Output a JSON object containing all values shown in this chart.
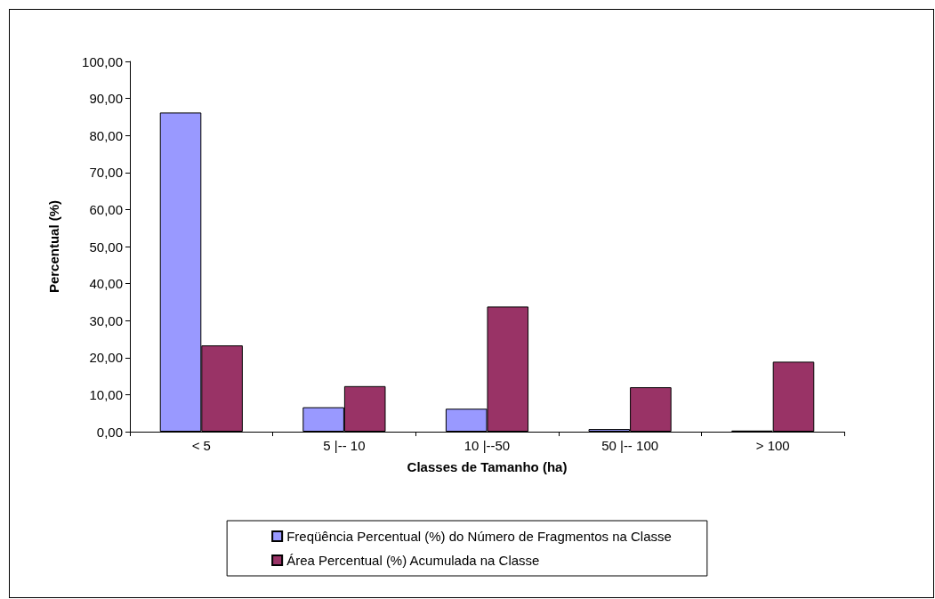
{
  "chart_data": {
    "type": "bar",
    "xlabel": "Classes de Tamanho (ha)",
    "ylabel": "Percentual (%)",
    "categories": [
      "< 5",
      "5 |-- 10",
      "10 |--50",
      "50 |-- 100",
      "> 100"
    ],
    "series": [
      {
        "name": "Freqüência Percentual (%) do Número de Fragmentos na Classe",
        "color": "#9999ff",
        "values": [
          86.2,
          6.6,
          6.2,
          0.7,
          0.3
        ]
      },
      {
        "name": "Área Percentual (%) Acumulada na Classe",
        "color": "#993366",
        "values": [
          23.3,
          12.3,
          33.8,
          12.0,
          18.9
        ]
      }
    ],
    "ylim": [
      0,
      100
    ],
    "yticks": [
      {
        "value": 0,
        "label": "0,00"
      },
      {
        "value": 10,
        "label": "10,00"
      },
      {
        "value": 20,
        "label": "20,00"
      },
      {
        "value": 30,
        "label": "30,00"
      },
      {
        "value": 40,
        "label": "40,00"
      },
      {
        "value": 50,
        "label": "50,00"
      },
      {
        "value": 60,
        "label": "60,00"
      },
      {
        "value": 70,
        "label": "70,00"
      },
      {
        "value": 80,
        "label": "80,00"
      },
      {
        "value": 90,
        "label": "90,00"
      },
      {
        "value": 100,
        "label": "100,00"
      }
    ],
    "grid": false,
    "legend": "bottom"
  }
}
